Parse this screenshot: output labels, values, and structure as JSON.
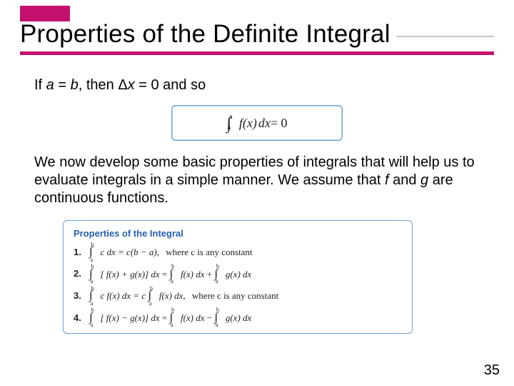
{
  "colors": {
    "accent": "#c5116e",
    "rule_thin": "#c5c5c5",
    "box_border": "#6aa0d8",
    "props_title": "#245fb0",
    "text": "#000000",
    "background": "#ffffff"
  },
  "header": {
    "title": "Properties of the Definite Integral"
  },
  "body": {
    "line1_pre": "If ",
    "line1_a": "a",
    "line1_eq1": " = ",
    "line1_b": "b",
    "line1_mid": ", then Δ",
    "line1_x": "x",
    "line1_post": " = 0 and so",
    "equation": {
      "int_symbol": "∫",
      "sup": "a",
      "sub": "a",
      "fx": "f(x)",
      "dx": " dx ",
      "eq": "= 0"
    },
    "para2_pre": "We now develop some basic properties of integrals that will help us to evaluate integrals in a simple manner. We assume that ",
    "para2_f": "f",
    "para2_mid": " and ",
    "para2_g": "g",
    "para2_post": " are continuous functions."
  },
  "properties": {
    "title": "Properties of the Integral",
    "rows": [
      {
        "num": "1.",
        "lhs_sup": "b",
        "lhs_sub": "a",
        "lhs_body": "c dx",
        "rhs": " = c(b − a),",
        "note": "   where c is any constant"
      },
      {
        "num": "2.",
        "lhs_sup": "b",
        "lhs_sub": "a",
        "lhs_body": "[ f(x) + g(x)] dx",
        "rhs_pre": " = ",
        "t1_sup": "b",
        "t1_sub": "a",
        "t1_body": "f(x) dx",
        "plus": " + ",
        "t2_sup": "b",
        "t2_sub": "a",
        "t2_body": "g(x) dx"
      },
      {
        "num": "3.",
        "lhs_sup": "b",
        "lhs_sub": "a",
        "lhs_body": "c f(x) dx",
        "rhs_pre": " = c ",
        "t1_sup": "b",
        "t1_sub": "a",
        "t1_body": "f(x) dx,",
        "note": "   where c is any constant"
      },
      {
        "num": "4.",
        "lhs_sup": "b",
        "lhs_sub": "a",
        "lhs_body": "[ f(x) − g(x)] dx",
        "rhs_pre": " = ",
        "t1_sup": "b",
        "t1_sub": "a",
        "t1_body": "f(x) dx",
        "minus": " − ",
        "t2_sup": "b",
        "t2_sub": "a",
        "t2_body": "g(x) dx"
      }
    ]
  },
  "slide_number": "35"
}
